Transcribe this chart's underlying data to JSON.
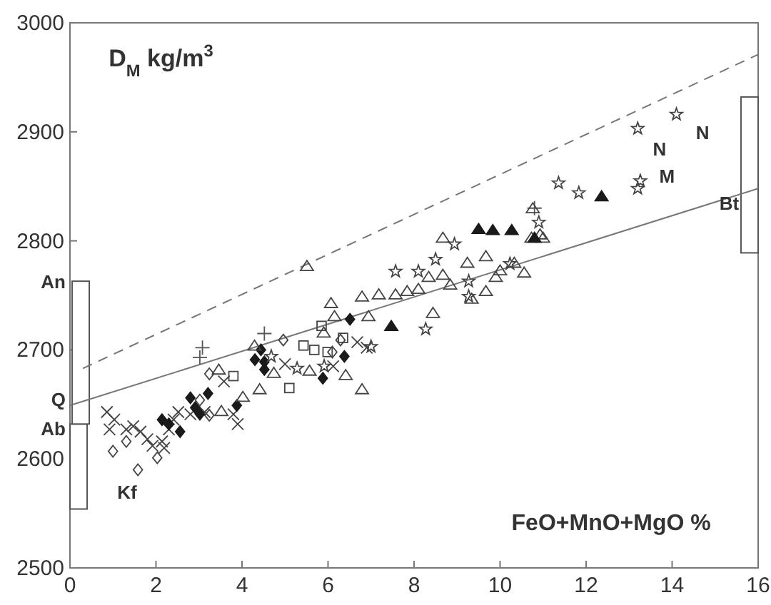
{
  "chart_data": {
    "type": "scatter",
    "ylabel": "D$_{M}$ kg/m$^{3}$",
    "xlabel": "FeO+MnO+MgO %",
    "xlim": [
      0,
      16
    ],
    "xticks": [
      0,
      2,
      4,
      6,
      8,
      10,
      12,
      14,
      16
    ],
    "ylim": [
      2500,
      3000
    ],
    "yticks": [
      2500,
      2600,
      2700,
      2800,
      2900,
      3000
    ],
    "grid": false,
    "annotations": [
      "An",
      "Q",
      "Ab",
      "Kf",
      "Bt",
      "N",
      "N",
      "M"
    ],
    "series": [
      {
        "type": "bar",
        "color": "#ffffff",
        "x": [
          0.2,
          0.25,
          15.8
        ],
        "base": [
          2554,
          2632,
          2789
        ],
        "values": [
          78,
          131,
          143
        ]
      },
      {
        "type": "line",
        "color": "#777777",
        "line_style": "solid",
        "x": [
          0,
          16
        ],
        "values": [
          2649,
          2848
        ]
      },
      {
        "type": "line",
        "color": "#777777",
        "line_style": "dashed",
        "x": [
          0.3,
          16
        ],
        "values": [
          2683,
          2971
        ]
      },
      {
        "marker": "cross",
        "color": "#444444",
        "x": [
          0.86,
          1.03,
          1.31,
          1.47,
          1.64,
          1.8,
          1.92,
          2.14,
          2.3,
          2.41,
          2.52,
          2.8,
          3.13,
          3.9,
          3.8,
          3.58,
          5.0,
          6.12,
          6.68,
          6.9,
          2.19,
          0.92
        ],
        "values": [
          2643,
          2636,
          2627,
          2630,
          2625,
          2618,
          2612,
          2616,
          2627,
          2636,
          2643,
          2641,
          2643,
          2632,
          2641,
          2671,
          2687,
          2685,
          2707,
          2702,
          2610,
          2627
        ]
      },
      {
        "marker": "diamond",
        "color": "#444444",
        "x": [
          1.0,
          1.58,
          1.31,
          3.02,
          3.24,
          3.24,
          4.96,
          6.1,
          6.29,
          2.03
        ],
        "values": [
          2607,
          2590,
          2616,
          2654,
          2640,
          2678,
          2709,
          2698,
          2709,
          2601
        ]
      },
      {
        "marker": "diamond",
        "color": "#1a1a1a",
        "x": [
          2.14,
          2.3,
          2.56,
          2.8,
          2.91,
          3.02,
          3.21,
          3.88,
          4.3,
          4.44,
          4.52,
          4.52,
          5.88,
          6.38,
          6.51
        ],
        "values": [
          2636,
          2632,
          2625,
          2656,
          2647,
          2641,
          2660,
          2649,
          2691,
          2700,
          2689,
          2682,
          2674,
          2694,
          2728
        ]
      },
      {
        "marker": "square",
        "color": "#444444",
        "x": [
          5.43,
          5.68,
          5.99,
          5.1,
          6.35,
          3.8,
          5.85
        ],
        "values": [
          2704,
          2700,
          2698,
          2665,
          2711,
          2676,
          2722
        ]
      },
      {
        "marker": "cross",
        "color": "#555555",
        "x": [
          3.02,
          3.08,
          4.52,
          10.8
        ],
        "values": [
          2693,
          2702,
          2715,
          2830
        ]
      },
      {
        "marker": "triangle",
        "color": "#444444",
        "x": [
          6.07,
          6.79,
          4.41,
          4.02,
          3.52,
          4.74,
          6.79,
          5.9,
          5.57,
          5.51,
          6.15,
          6.94,
          6.41,
          4.29,
          3.46,
          7.18,
          7.84,
          8.34,
          8.84,
          9.34,
          9.67,
          10.0,
          10.33,
          10.73,
          11.0,
          8.44,
          8.67,
          9.24,
          10.56,
          9.67,
          8.67,
          8.1,
          7.57,
          10.76,
          10.93,
          9.9
        ],
        "values": [
          2742,
          2748,
          2663,
          2656,
          2643,
          2678,
          2663,
          2715,
          2680,
          2776,
          2730,
          2730,
          2676,
          2703,
          2681,
          2750,
          2753,
          2766,
          2759,
          2746,
          2753,
          2772,
          2779,
          2802,
          2802,
          2733,
          2802,
          2779,
          2770,
          2785,
          2768,
          2755,
          2750,
          2829,
          2805,
          2766
        ]
      },
      {
        "marker": "triangle",
        "color": "#1a1a1a",
        "x": [
          9.5,
          9.83,
          10.27,
          10.8,
          12.36,
          7.47
        ],
        "values": [
          2810,
          2809,
          2809,
          2802,
          2840,
          2721
        ]
      },
      {
        "marker": "star",
        "color": "#444444",
        "x": [
          13.2,
          14.1,
          13.26,
          13.2,
          11.83,
          11.36,
          8.94,
          8.5,
          8.1,
          7.57,
          10.23,
          9.27,
          9.27,
          10.9,
          8.27,
          4.68,
          5.28,
          5.91,
          7.0
        ],
        "values": [
          2903,
          2916,
          2855,
          2848,
          2844,
          2853,
          2797,
          2783,
          2772,
          2772,
          2779,
          2763,
          2749,
          2817,
          2719,
          2694,
          2683,
          2685,
          2703
        ]
      }
    ]
  }
}
